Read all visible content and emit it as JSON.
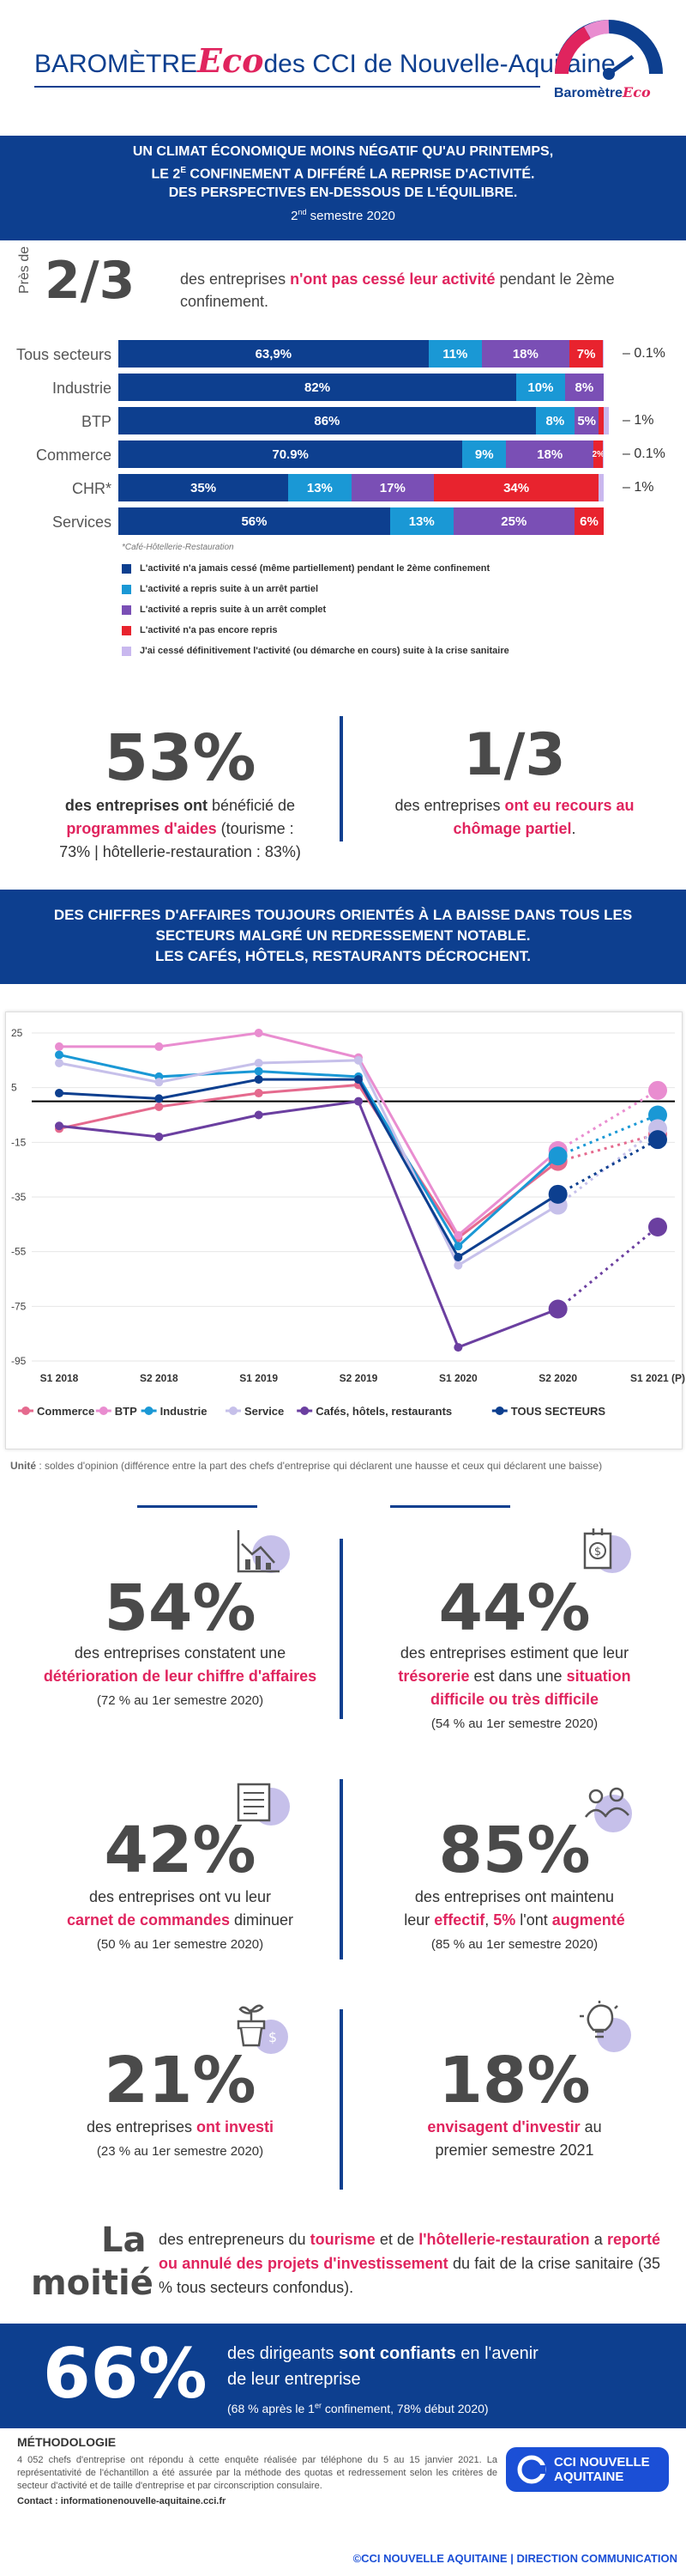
{
  "header": {
    "title_left": "BAROMÈTRE",
    "title_eco": "Eco",
    "title_right": "des CCI de Nouvelle-Aquitaine",
    "logo_label": "Baromètre",
    "logo_eco": "Eco"
  },
  "banner1": {
    "line1": "UN CLIMAT ÉCONOMIQUE MOINS NÉGATIF QU'AU PRINTEMPS,",
    "line2a": "LE 2",
    "line2sup": "E",
    "line2b": " CONFINEMENT A DIFFÉRÉ LA REPRISE D'ACTIVITÉ.",
    "line3": "DES PERSPECTIVES EN-DESSOUS DE L'ÉQUILIBRE.",
    "semester_a": "2",
    "semester_sup": "nd",
    "semester_b": " semestre 2020"
  },
  "intro": {
    "pres_de": "Près de",
    "big": "2/3",
    "text_a": "des entreprises ",
    "text_b": "n'ont pas cessé leur activité",
    "text_c": " pendant le 2ème confinement."
  },
  "chart_data": [
    {
      "type": "bar",
      "orientation": "horizontal-stacked",
      "categories": [
        "Tous secteurs",
        "Industrie",
        "BTP",
        "Commerce",
        "CHR*",
        "Services"
      ],
      "series": [
        {
          "name": "L'activité n'a jamais cessé (même partiellement) pendant le 2ème confinement",
          "color": "#0d3f8f",
          "values": [
            63.9,
            82,
            86,
            70.9,
            35,
            56
          ],
          "labels": [
            "63,9%",
            "82%",
            "86%",
            "70.9%",
            "35%",
            "56%"
          ]
        },
        {
          "name": "L'activité a repris suite à un arrêt partiel",
          "color": "#1a98d5",
          "values": [
            11,
            10,
            8,
            9,
            13,
            13
          ],
          "labels": [
            "11%",
            "10%",
            "8%",
            "9%",
            "13%",
            "13%"
          ]
        },
        {
          "name": "L'activité a repris suite à un arrêt complet",
          "color": "#7a4fb5",
          "values": [
            18,
            8,
            5,
            18,
            17,
            25
          ],
          "labels": [
            "18%",
            "8%",
            "5%",
            "18%",
            "17%",
            "25%"
          ]
        },
        {
          "name": "L'activité n'a pas encore repris",
          "color": "#e8232e",
          "values": [
            7,
            0,
            1,
            2,
            34,
            6
          ],
          "labels": [
            "7%",
            "",
            "",
            "2%",
            "34%",
            "6%"
          ]
        },
        {
          "name": "J'ai cessé définitivement l'activité (ou démarche en cours) suite à la crise sanitaire",
          "color": "#c9b8ef",
          "values": [
            0.1,
            0,
            1,
            0.1,
            1,
            0
          ],
          "labels": [
            "0.1%",
            "",
            "1%",
            "0.1%",
            "1%",
            ""
          ]
        }
      ],
      "footnote": "*Café-Hôtellerie-Restauration"
    },
    {
      "type": "line",
      "x": [
        "S1 2018",
        "S2 2018",
        "S1 2019",
        "S2 2019",
        "S1 2020",
        "S2 2020",
        "S1 2021 (P)"
      ],
      "ylim": [
        -95,
        25
      ],
      "yticks": [
        25,
        5,
        -15,
        -35,
        -55,
        -75,
        -95
      ],
      "projected_from_index": 5,
      "series": [
        {
          "name": "Commerce",
          "color": "#e56a8e",
          "values": [
            -10,
            -2,
            3,
            6,
            -50,
            -22,
            -12
          ]
        },
        {
          "name": "BTP",
          "color": "#e98dd0",
          "values": [
            20,
            20,
            25,
            16,
            -49,
            -18,
            4
          ]
        },
        {
          "name": "Industrie",
          "color": "#1a98d5",
          "values": [
            17,
            9,
            11,
            9,
            -53,
            -20,
            -5
          ]
        },
        {
          "name": "Service",
          "color": "#c6c0ea",
          "values": [
            14,
            7,
            14,
            15,
            -60,
            -38,
            -10
          ]
        },
        {
          "name": "Cafés, hôtels, restaurants",
          "color": "#6b3fa0",
          "values": [
            -9,
            -13,
            -5,
            0,
            -90,
            -76,
            -46
          ]
        },
        {
          "name": "TOUS SECTEURS",
          "color": "#0d3f8f",
          "values": [
            3,
            1,
            8,
            8,
            -57,
            -34,
            -14
          ]
        }
      ]
    }
  ],
  "stats1": {
    "left_big": "53%",
    "left_a": "des entreprises ont",
    "left_b": " bénéficié de",
    "left_c": "programmes d'aides",
    "left_d": " (tourisme :",
    "left_e": "73% | hôtellerie-restauration : 83%)",
    "right_big": "1/3",
    "right_a": "des entreprises ",
    "right_b": "ont eu recours au",
    "right_c": "chômage partiel",
    "right_d": "."
  },
  "banner2": {
    "line1": "DES CHIFFRES D'AFFAIRES TOUJOURS ORIENTÉS À LA BAISSE DANS TOUS LES",
    "line2": "SECTEURS MALGRÉ UN REDRESSEMENT NOTABLE.",
    "line3": "LES CAFÉS, HÔTELS, RESTAURANTS DÉCROCHENT."
  },
  "unit_note": {
    "label": "Unité",
    "text": " : soldes d'opinion (différence entre la part des chefs d'entreprise qui déclarent une hausse et ceux qui déclarent une baisse)"
  },
  "grid": {
    "s54": {
      "big": "54%",
      "a": "des entreprises constatent une",
      "b": "détérioration de leur chiffre d'affaires",
      "c": "(72 % au 1er semestre 2020)"
    },
    "s44": {
      "big": "44%",
      "a": "des entreprises estiment que leur",
      "b": "trésorerie",
      "c": " est dans une ",
      "d": "situation",
      "e": "difficile ou très difficile",
      "f": "(54 % au 1er semestre 2020)"
    },
    "s42": {
      "big": "42%",
      "a": "des entreprises ont vu leur",
      "b": "carnet de commandes",
      "c": " diminuer",
      "d": "(50 % au 1er semestre 2020)"
    },
    "s85": {
      "big": "85%",
      "a": "des entreprises ont maintenu",
      "b": "leur ",
      "c": "effectif",
      "d": ", ",
      "e": "5%",
      "f": " l'ont ",
      "g": "augmenté",
      "h": "(85 % au 1er semestre 2020)"
    },
    "s21": {
      "big": "21%",
      "a": "des entreprises ",
      "b": "ont investi",
      "c": "(23 % au 1er semestre 2020)"
    },
    "s18": {
      "big": "18%",
      "a": "envisagent d'investir",
      "b": " au",
      "c": "premier semestre 2021"
    }
  },
  "moitie": {
    "la": "La",
    "moitie": "moitié",
    "a": "des entrepreneurs du ",
    "b": "tourisme",
    "c": " et de ",
    "d": "l'hôtellerie-restauration",
    "e": " a",
    "f": "reporté ou annulé des projets d'investissement",
    "g": " du fait de la",
    "h": "crise sanitaire (35 % tous secteurs confondus)."
  },
  "confidence": {
    "big": "66%",
    "a": "des dirigeants ",
    "b": "sont confiants",
    "c": " en l'avenir",
    "d": "de leur entreprise",
    "e": "(68 % après le 1",
    "esup": "er",
    "f": " confinement, 78% début 2020)"
  },
  "methodology": {
    "title": "MÉTHODOLOGIE",
    "text": "4 052 chefs d'entreprise ont répondu à cette enquête réalisée par téléphone du 5 au 15 janvier 2021. La représentativité de l'échantillon a été assurée par la méthode des quotas et redressement selon les critères de secteur d'activité et de taille d'entreprise et par circonscription consulaire.",
    "contact_label": "Contact : ",
    "contact": "informationenouvelle-aquitaine.cci.fr",
    "cci_logo_a": "CCI NOUVELLE",
    "cci_logo_b": "AQUITAINE",
    "footer": "©CCI NOUVELLE AQUITAINE | DIRECTION COMMUNICATION"
  },
  "colors": {
    "navy": "#0d3f8f",
    "pink": "#e0245e"
  },
  "icons": [
    "chart-down-icon",
    "dollar-doc-icon",
    "order-book-icon",
    "team-icon",
    "plant-money-icon",
    "lightbulb-icon"
  ]
}
